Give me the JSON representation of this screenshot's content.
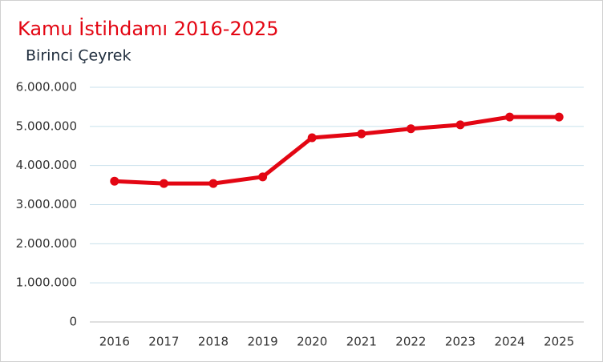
{
  "chart_data": {
    "type": "line",
    "title": "Kamu İstihdamı 2016-2025",
    "subtitle": "Birinci Çeyrek",
    "categories": [
      "2016",
      "2017",
      "2018",
      "2019",
      "2020",
      "2021",
      "2022",
      "2023",
      "2024",
      "2025"
    ],
    "series": [
      {
        "name": "Kamu İstihdamı",
        "color": "#e30613",
        "values": [
          3600000,
          3540000,
          3540000,
          3710000,
          4710000,
          4810000,
          4940000,
          5040000,
          5240000,
          5240000
        ]
      }
    ],
    "ylim": [
      0,
      6000000
    ],
    "yticks": [
      0,
      {
        "value": 1000000,
        "label": "1.000.000"
      },
      {
        "value": 2000000,
        "label": "2.000.000"
      },
      {
        "value": 3000000,
        "label": "3.000.000"
      },
      {
        "value": 4000000,
        "label": "4.000.000"
      },
      {
        "value": 5000000,
        "label": "5.000.000"
      },
      {
        "value": 6000000,
        "label": "6.000.000"
      }
    ],
    "grid": true,
    "legend": false
  }
}
